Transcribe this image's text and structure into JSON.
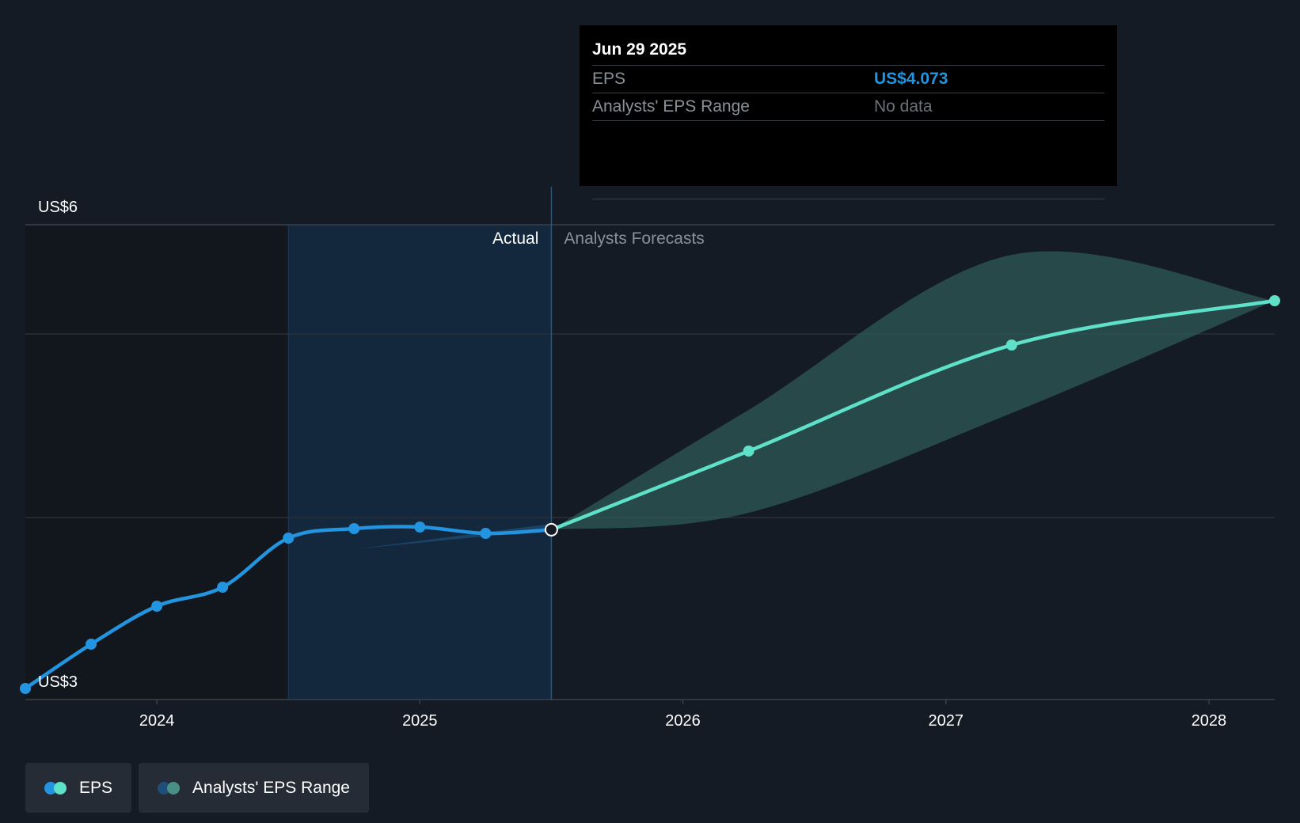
{
  "chart_data": {
    "type": "line",
    "y_axis": {
      "top_label": "US$6",
      "bottom_label": "US$3",
      "ylim": [
        3,
        6
      ]
    },
    "x_axis": {
      "tick_labels": [
        "2024",
        "2025",
        "2026",
        "2027",
        "2028"
      ],
      "xlim": [
        2023.5,
        2028.25
      ]
    },
    "region_labels": {
      "actual": "Actual",
      "forecast": "Analysts Forecasts"
    },
    "divider_x": 2025.5,
    "series": [
      {
        "name": "EPS",
        "color": "#2394df",
        "points": [
          [
            2023.5,
            3.07
          ],
          [
            2023.75,
            3.35
          ],
          [
            2024.0,
            3.59
          ],
          [
            2024.25,
            3.71
          ],
          [
            2024.5,
            4.02
          ],
          [
            2024.75,
            4.08
          ],
          [
            2025.0,
            4.09
          ],
          [
            2025.25,
            4.05
          ],
          [
            2025.5,
            4.073
          ]
        ]
      },
      {
        "name": "EPS",
        "color": "#5ee0c9",
        "points": [
          [
            2025.5,
            4.073
          ],
          [
            2026.25,
            4.57
          ],
          [
            2027.25,
            5.24
          ],
          [
            2028.25,
            5.52
          ]
        ]
      }
    ],
    "range_band": {
      "name": "Analysts' EPS Range",
      "color": "#2e5a57",
      "upper": [
        [
          2025.5,
          4.073
        ],
        [
          2026.25,
          4.83
        ],
        [
          2027.25,
          5.81
        ],
        [
          2028.25,
          5.52
        ]
      ],
      "lower": [
        [
          2025.5,
          4.073
        ],
        [
          2026.25,
          4.18
        ],
        [
          2027.25,
          4.81
        ],
        [
          2028.25,
          5.52
        ]
      ]
    }
  },
  "tooltip": {
    "date": "Jun 29 2025",
    "rows": [
      {
        "label": "EPS",
        "value": "US$4.073"
      },
      {
        "label": "Analysts' EPS Range",
        "value": "No data"
      }
    ]
  },
  "legend": [
    {
      "label": "EPS",
      "colors": [
        "#2394df",
        "#5ee0c9"
      ]
    },
    {
      "label": "Analysts' EPS Range",
      "colors": [
        "#1f4f78",
        "#4a8f86"
      ]
    }
  ]
}
